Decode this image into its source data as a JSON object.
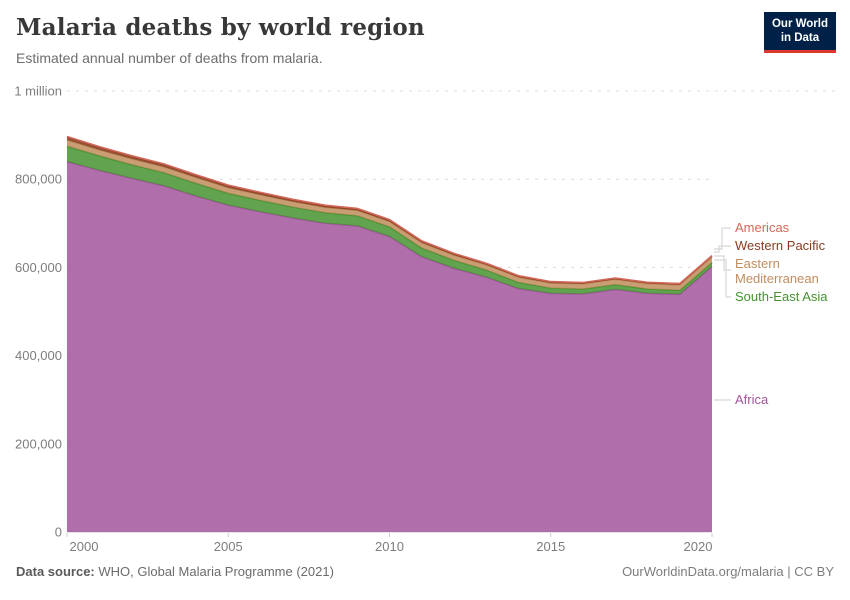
{
  "header": {
    "title": "Malaria deaths by world region",
    "subtitle": "Estimated annual number of deaths from malaria."
  },
  "logo": {
    "line1": "Our World",
    "line2": "in Data",
    "bg_color": "#002147",
    "accent_color": "#dc3830"
  },
  "chart_data": {
    "type": "area",
    "stacked": true,
    "title": "Malaria deaths by world region",
    "xlabel": "",
    "ylabel": "",
    "grid": "dashed",
    "legend_position": "right",
    "ylim": [
      0,
      1000000
    ],
    "x": [
      2000,
      2001,
      2002,
      2003,
      2004,
      2005,
      2006,
      2007,
      2008,
      2009,
      2010,
      2011,
      2012,
      2013,
      2014,
      2015,
      2016,
      2017,
      2018,
      2019,
      2020
    ],
    "x_ticks": [
      2000,
      2005,
      2010,
      2015,
      2020
    ],
    "y_ticks": [
      {
        "value": 0,
        "label": "0"
      },
      {
        "value": 200000,
        "label": "200,000"
      },
      {
        "value": 400000,
        "label": "400,000"
      },
      {
        "value": 600000,
        "label": "600,000"
      },
      {
        "value": 800000,
        "label": "800,000"
      },
      {
        "value": 1000000,
        "label": "1 million"
      }
    ],
    "series_order": "bottom-to-top",
    "series": [
      {
        "name": "Africa",
        "color": "#a2559c",
        "values": [
          840000,
          820000,
          802000,
          785000,
          762000,
          741000,
          726000,
          712000,
          700000,
          694000,
          670000,
          624000,
          598000,
          578000,
          552000,
          541000,
          540000,
          550000,
          541000,
          539000,
          602000
        ]
      },
      {
        "name": "South-East Asia",
        "color": "#45932f",
        "values": [
          35000,
          33000,
          31000,
          30000,
          29000,
          27000,
          26000,
          25000,
          24000,
          23000,
          22000,
          20000,
          18000,
          16000,
          14000,
          12000,
          11000,
          11000,
          10000,
          9000,
          9000
        ]
      },
      {
        "name": "Eastern Mediterranean",
        "color": "#c08d5d",
        "values": [
          14000,
          13500,
          13200,
          13000,
          12800,
          12600,
          12400,
          12200,
          12100,
          12000,
          11900,
          11800,
          11700,
          11600,
          11500,
          11400,
          11500,
          11800,
          12000,
          12300,
          12800
        ]
      },
      {
        "name": "Western Pacific",
        "color": "#8a3c20",
        "values": [
          6400,
          6000,
          5700,
          5400,
          5100,
          4800,
          4500,
          4200,
          3900,
          3700,
          3500,
          3300,
          3100,
          2900,
          2800,
          2700,
          2600,
          2500,
          2500,
          2400,
          2400
        ]
      },
      {
        "name": "Americas",
        "color": "#d2695a",
        "values": [
          1500,
          1400,
          1400,
          1300,
          1300,
          1200,
          1200,
          1100,
          1100,
          1000,
          1000,
          900,
          900,
          800,
          800,
          700,
          700,
          600,
          600,
          600,
          600
        ]
      }
    ],
    "legend": [
      {
        "label": "Americas",
        "color": "#d2695a"
      },
      {
        "label": "Western Pacific",
        "color": "#8a3c20"
      },
      {
        "label": "Eastern Mediterranean",
        "color": "#c08d5d"
      },
      {
        "label": "South-East Asia",
        "color": "#45932f"
      },
      {
        "label": "Africa",
        "color": "#a2559c"
      }
    ]
  },
  "footer": {
    "datasource_label": "Data source:",
    "datasource_value": "WHO, Global Malaria Programme (2021)",
    "attribution": "OurWorldinData.org/malaria | CC BY"
  }
}
